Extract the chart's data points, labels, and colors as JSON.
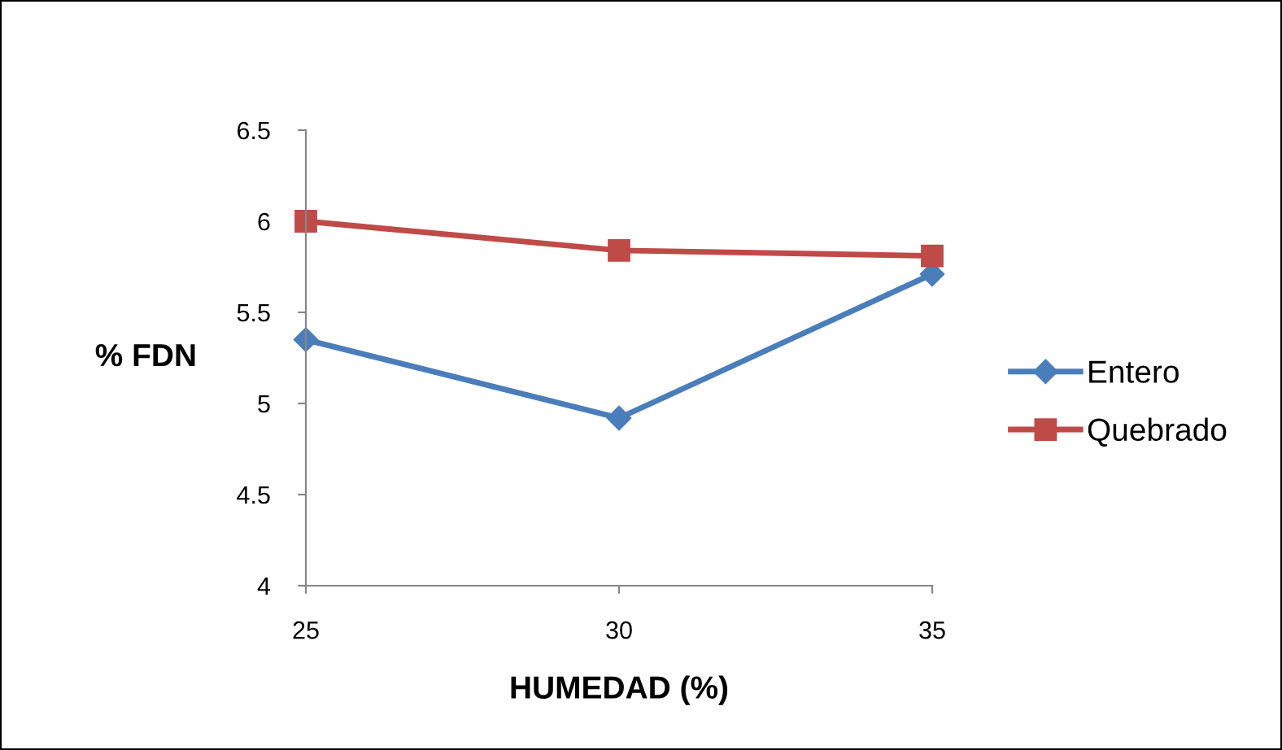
{
  "chart_data": {
    "type": "line",
    "xlabel": "HUMEDAD (%)",
    "ylabel": "% FDN",
    "categories": [
      "25",
      "30",
      "35"
    ],
    "series": [
      {
        "name": "Entero",
        "color": "#4a7ebb",
        "values": [
          5.35,
          4.92,
          5.71
        ],
        "marker": "diamond"
      },
      {
        "name": "Quebrado",
        "color": "#be4b48",
        "values": [
          6.0,
          5.84,
          5.81
        ],
        "marker": "square"
      }
    ],
    "ylim": [
      4,
      6.5
    ],
    "yticks": [
      4,
      4.5,
      5,
      5.5,
      6,
      6.5
    ],
    "grid": false,
    "legend": "right",
    "line_style": "solid"
  }
}
